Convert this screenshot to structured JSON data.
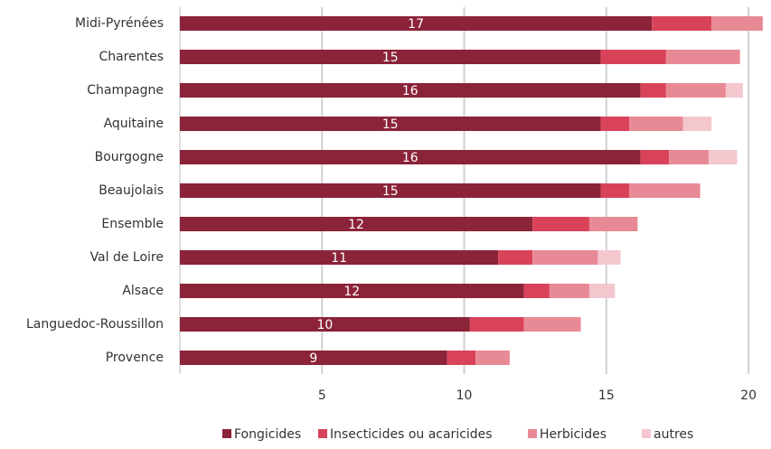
{
  "chart_data": {
    "type": "stacked-barh",
    "categories": [
      "Midi-Pyrénées",
      "Charentes",
      "Champagne",
      "Aquitaine",
      "Bourgogne",
      "Beaujolais",
      "Ensemble",
      "Val de Loire",
      "Alsace",
      "Languedoc-Roussillon",
      "Provence"
    ],
    "series": [
      {
        "name": "Fongicides",
        "color": "#8b2339",
        "values": [
          16.6,
          14.8,
          16.2,
          14.8,
          16.2,
          14.8,
          12.4,
          11.2,
          12.1,
          10.2,
          9.4
        ],
        "value_labels": [
          "17",
          "15",
          "16",
          "15",
          "16",
          "15",
          "12",
          "11",
          "12",
          "10",
          "9"
        ]
      },
      {
        "name": "Insecticides ou acaricides",
        "color": "#d9435a",
        "values": [
          2.1,
          2.3,
          0.9,
          1.0,
          1.0,
          1.0,
          2.0,
          1.2,
          0.9,
          1.9,
          1.0
        ]
      },
      {
        "name": "Herbicides",
        "color": "#e88a96",
        "values": [
          1.8,
          2.6,
          2.1,
          1.9,
          1.4,
          2.5,
          1.7,
          2.3,
          1.4,
          2.0,
          1.2
        ]
      },
      {
        "name": "autres",
        "color": "#f4c7cf",
        "values": [
          null,
          null,
          0.6,
          1.0,
          1.0,
          null,
          null,
          0.8,
          0.9,
          null,
          null
        ]
      }
    ],
    "xlim": [
      0,
      20.6
    ],
    "xticks": [
      5,
      10,
      15,
      20
    ],
    "grid": true
  }
}
